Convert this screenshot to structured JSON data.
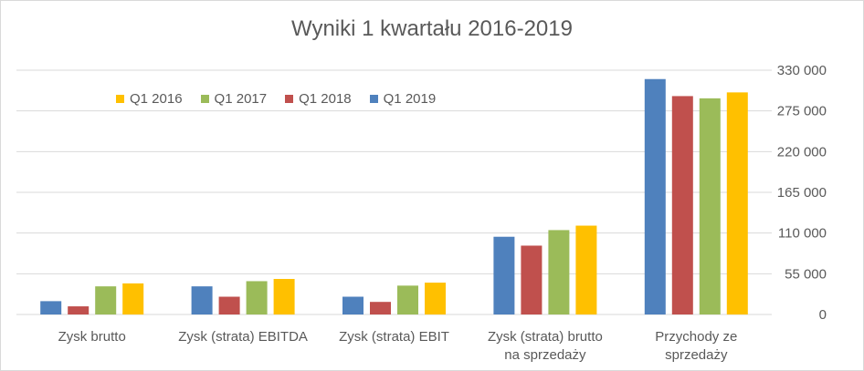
{
  "chart_data": {
    "type": "bar",
    "title": "Wyniki 1 kwartału 2016-2019",
    "categories": [
      [
        "Zysk brutto"
      ],
      [
        "Zysk (strata) EBITDA"
      ],
      [
        "Zysk (strata) EBIT"
      ],
      [
        "Zysk (strata) brutto",
        "na sprzedaży"
      ],
      [
        "Przychody ze",
        "sprzedaży"
      ]
    ],
    "series_order_in_group": [
      "Q1 2019",
      "Q1 2018",
      "Q1 2017",
      "Q1 2016"
    ],
    "series": [
      {
        "name": "Q1 2016",
        "color": "#FFC000",
        "values": [
          42000,
          48000,
          43000,
          120000,
          300000
        ]
      },
      {
        "name": "Q1 2017",
        "color": "#9BBB59",
        "values": [
          38000,
          45000,
          39000,
          114000,
          292000
        ]
      },
      {
        "name": "Q1 2018",
        "color": "#C0504D",
        "values": [
          11000,
          24000,
          17000,
          93000,
          295000
        ]
      },
      {
        "name": "Q1 2019",
        "color": "#4F81BD",
        "values": [
          18000,
          38000,
          24000,
          105000,
          318000
        ]
      }
    ],
    "ylim": [
      0,
      330000
    ],
    "yticks": [
      0,
      55000,
      110000,
      165000,
      220000,
      275000,
      330000
    ],
    "ytick_labels": [
      "0",
      "55 000",
      "110 000",
      "165 000",
      "220 000",
      "275 000",
      "330 000"
    ],
    "y_axis_side": "right",
    "grid": true,
    "legend_position": "top-left inside plot"
  }
}
